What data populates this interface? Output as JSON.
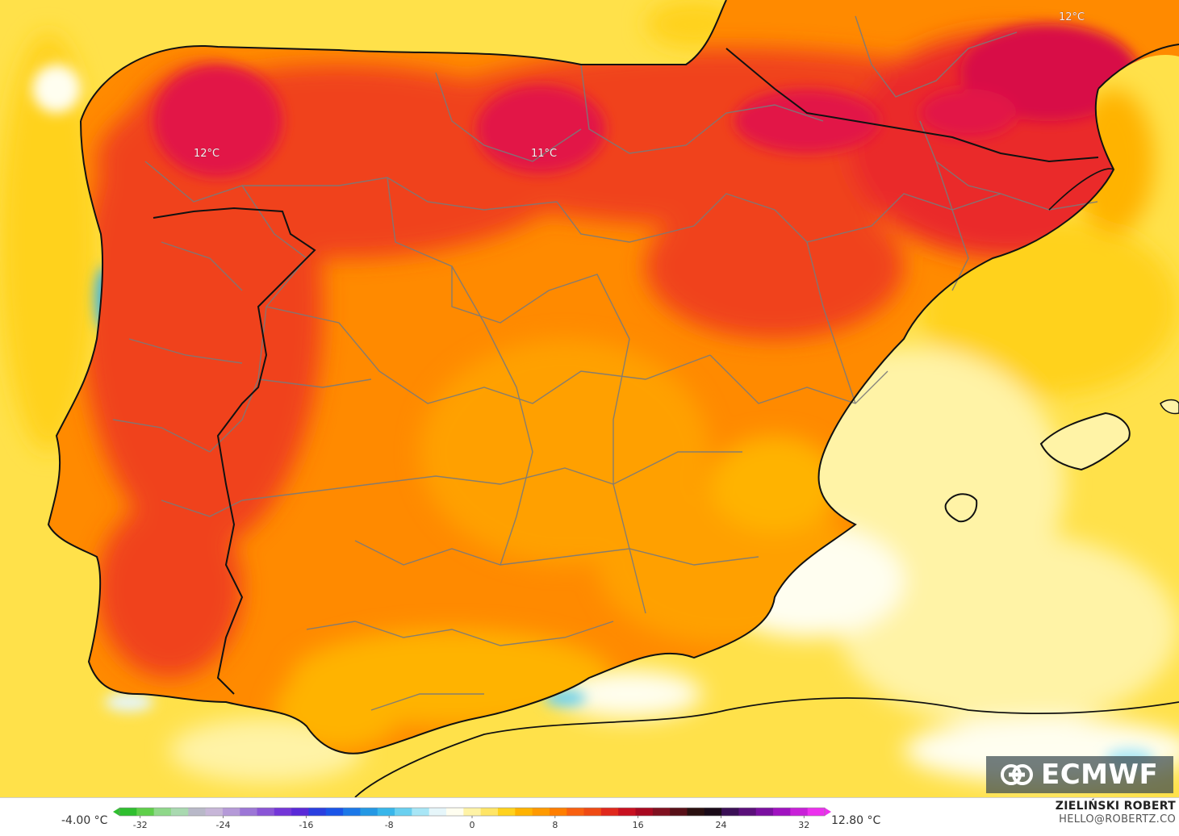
{
  "map": {
    "labels": [
      {
        "text": "12°C",
        "place": "galicia"
      },
      {
        "text": "11°C",
        "place": "castilla-north"
      },
      {
        "text": "12°C",
        "place": "pyrenees"
      }
    ]
  },
  "legend": {
    "min_label": "-4.00 °C",
    "max_label": "12.80 °C",
    "ticks": [
      "-32",
      "-24",
      "-16",
      "-8",
      "0",
      "8",
      "16",
      "24",
      "32"
    ],
    "tick_values": [
      -32,
      -24,
      -16,
      -8,
      0,
      8,
      16,
      24,
      32
    ],
    "range": [
      -34,
      34
    ],
    "colors": [
      "#2fbf2f",
      "#5fcf4a",
      "#8fd88a",
      "#a9d9b0",
      "#b8b8c8",
      "#c7b6d8",
      "#b59ad8",
      "#9c76d6",
      "#8a55d6",
      "#7436d8",
      "#5a2ad8",
      "#2a3fe0",
      "#1a55e8",
      "#1c78e8",
      "#2498e4",
      "#38b6ea",
      "#6ad0f0",
      "#a8e6f6",
      "#e6f6fa",
      "#fffef0",
      "#fff3a6",
      "#ffe566",
      "#ffd21e",
      "#ffb300",
      "#ff9a00",
      "#ff7e00",
      "#f96010",
      "#ef4a14",
      "#e0281c",
      "#c81020",
      "#a80820",
      "#801020",
      "#581018",
      "#2a1010",
      "#1a0a18",
      "#3a0f55",
      "#5a0f7a",
      "#7a0fa0",
      "#a012c0",
      "#c820d8",
      "#ec30ee"
    ]
  },
  "author": {
    "name": "ZIELIŃSKI ROBERT",
    "email": "HELLO@ROBERTZ.CO"
  },
  "logo": {
    "text": "ECMWF",
    "icon": "ecmwf-logo-icon"
  },
  "colors": {
    "sea_base": "#ffe14a",
    "land_base": "#ff8a00",
    "land_hot": "#f0421a",
    "land_peak": "#e21446",
    "coast": "#111111",
    "borders": "#7a7a7a"
  }
}
